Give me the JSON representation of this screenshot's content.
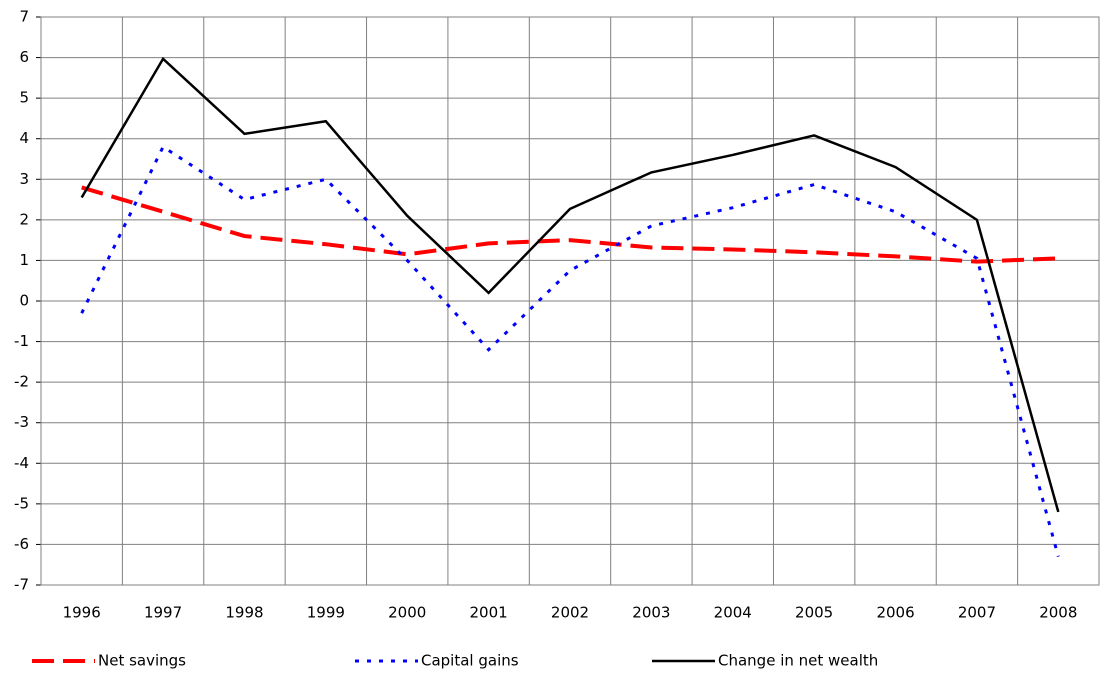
{
  "chart_data": {
    "type": "line",
    "categories": [
      "1996",
      "1997",
      "1998",
      "1999",
      "2000",
      "2001",
      "2002",
      "2003",
      "2004",
      "2005",
      "2006",
      "2007",
      "2008"
    ],
    "series": [
      {
        "name": "Net savings",
        "color": "#ff0000",
        "values": [
          2.8,
          2.2,
          1.6,
          1.4,
          1.15,
          1.42,
          1.5,
          1.32,
          1.27,
          1.2,
          1.1,
          0.97,
          1.05
        ]
      },
      {
        "name": "Capital gains",
        "color": "#0000ff",
        "values": [
          -0.3,
          3.8,
          2.5,
          3.0,
          1.0,
          -1.2,
          0.75,
          1.85,
          2.3,
          2.87,
          2.2,
          1.05,
          -6.3
        ]
      },
      {
        "name": "Change in net wealth",
        "color": "#000000",
        "values": [
          2.55,
          5.97,
          4.12,
          4.43,
          2.1,
          0.2,
          2.27,
          3.17,
          3.6,
          4.08,
          3.3,
          2.0,
          -5.2
        ]
      }
    ],
    "ylim": [
      -7,
      7
    ],
    "yticks": [
      -7,
      -6,
      -5,
      -4,
      -3,
      -2,
      -1,
      0,
      1,
      2,
      3,
      4,
      5,
      6,
      7
    ],
    "grid": true,
    "legend": "bottom"
  }
}
